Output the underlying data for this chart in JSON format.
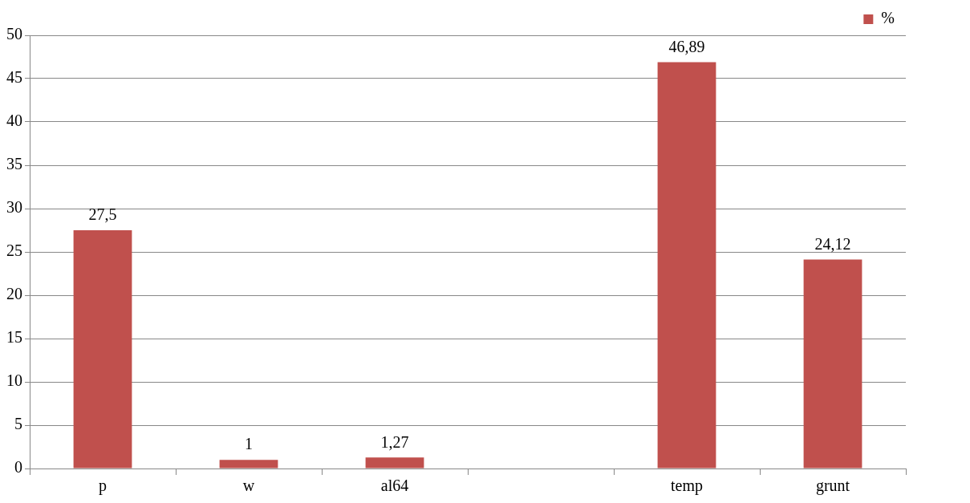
{
  "chart_data": {
    "type": "bar",
    "categories": [
      "p",
      "w",
      "al64",
      null,
      "temp",
      "grunt"
    ],
    "series": [
      {
        "name": "%",
        "color": "#c0504d",
        "values": [
          27.5,
          1,
          1.27,
          null,
          46.89,
          24.12
        ],
        "value_labels": [
          "27,5",
          "1",
          "1,27",
          null,
          "46,89",
          "24,12"
        ]
      }
    ],
    "ylim": [
      0,
      50
    ],
    "yticks": [
      0,
      5,
      10,
      15,
      20,
      25,
      30,
      35,
      40,
      45,
      50
    ],
    "grid": "y",
    "legend": "top right"
  }
}
